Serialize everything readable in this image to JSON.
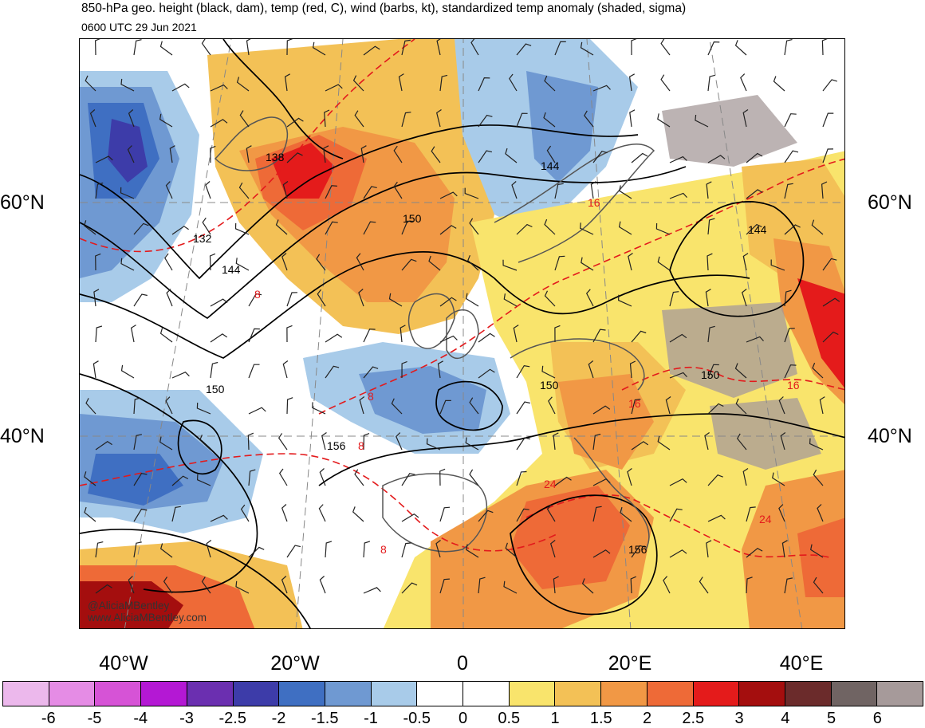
{
  "header": {
    "title": "850-hPa geo. height (black, dam), temp (red, C), wind (barbs, kt), standardized temp anomaly (shaded, sigma)",
    "subtitle": "0600 UTC 29 Jun 2021"
  },
  "axes": {
    "lat_labels": [
      "60°N",
      "40°N"
    ],
    "lon_labels": [
      "40°W",
      "20°W",
      "0",
      "20°E",
      "40°E"
    ]
  },
  "height_labels": [
    "138",
    "132",
    "144",
    "150",
    "144",
    "144",
    "150",
    "150",
    "150",
    "156",
    "156"
  ],
  "temp_labels": [
    "8",
    "8",
    "8",
    "8",
    "16",
    "16",
    "16",
    "24",
    "24"
  ],
  "credit": {
    "handle": "@AliciaMBentley",
    "website": "www.AliciaMBentley.com"
  },
  "legend": {
    "colors": [
      "#ecb8ec",
      "#e58ce5",
      "#d653d6",
      "#b418d4",
      "#6b2fb0",
      "#3d3ca9",
      "#3f6fc2",
      "#6f99d2",
      "#a8cbe9",
      "#ffffff",
      "#ffffff",
      "#f9e46c",
      "#f3c156",
      "#f19845",
      "#ee6a37",
      "#e41b1b",
      "#a40e0e",
      "#6b2b2b",
      "#706463",
      "#a69a9a"
    ],
    "ticks": [
      "-6",
      "-5",
      "-4",
      "-3",
      "-2.5",
      "-2",
      "-1.5",
      "-1",
      "-0.5",
      "0",
      "0.5",
      "1",
      "1.5",
      "2",
      "2.5",
      "3",
      "4",
      "5",
      "6"
    ]
  }
}
